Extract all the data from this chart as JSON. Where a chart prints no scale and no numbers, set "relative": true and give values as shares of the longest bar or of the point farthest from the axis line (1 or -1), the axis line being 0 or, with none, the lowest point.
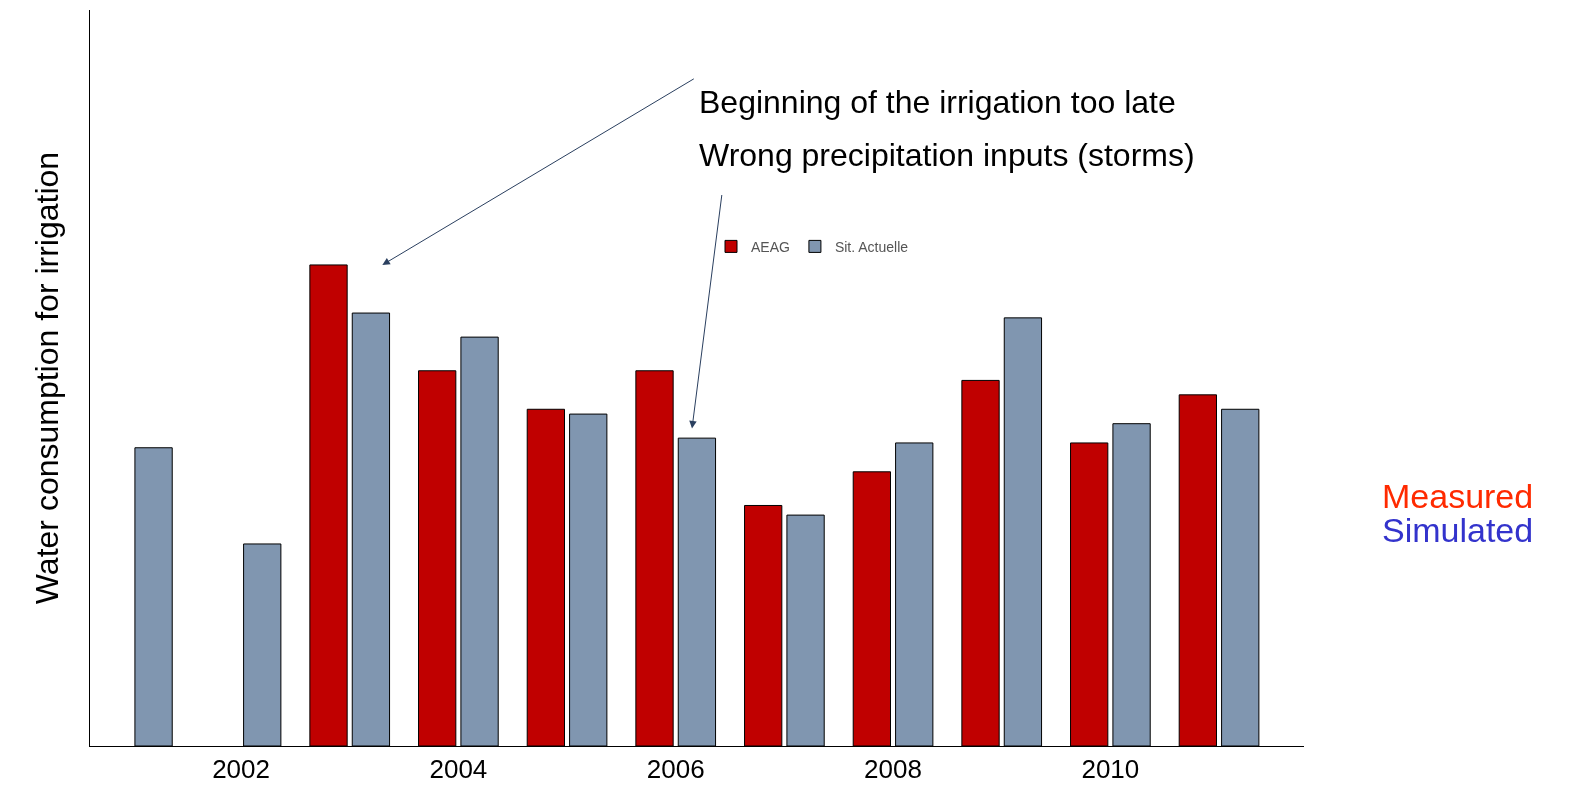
{
  "chart_data": {
    "type": "bar",
    "relative": true,
    "ylabel": "Water consumption for irrigation",
    "categories": [
      null,
      "2002",
      null,
      "2004",
      null,
      "2006",
      null,
      "2008",
      null,
      "2010",
      null
    ],
    "series": [
      {
        "name": "AEAG",
        "color": "#c00000",
        "values": [
          null,
          null,
          1,
          0.78,
          0.7,
          0.78,
          0.5,
          0.57,
          0.76,
          0.63,
          0.73
        ]
      },
      {
        "name": "Sit. Actuelle",
        "color": "#8096b0",
        "values": [
          0.62,
          0.42,
          0.9,
          0.85,
          0.69,
          0.64,
          0.48,
          0.63,
          0.89,
          0.67,
          0.7
        ]
      }
    ],
    "annotations": [
      "Beginning of the irrigation too late",
      "Wrong precipitation inputs (storms)",
      "Measured",
      "Simulated"
    ],
    "legend": "top"
  }
}
